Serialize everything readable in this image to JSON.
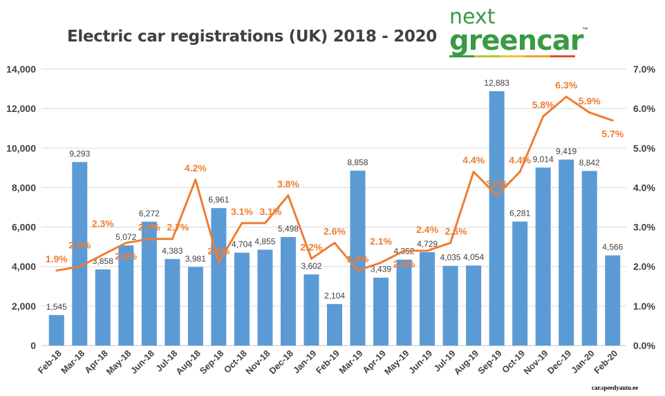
{
  "chart_data": {
    "type": "bar+line",
    "title": "Electric car registrations (UK) 2018 - 2020",
    "categories": [
      "Feb-18",
      "Mar-18",
      "Apr-18",
      "May-18",
      "Jun-18",
      "Jul-18",
      "Aug-18",
      "Sep-18",
      "Oct-18",
      "Nov-18",
      "Dec-18",
      "Jan-19",
      "Feb-19",
      "Mar-19",
      "Apr-19",
      "May-19",
      "Jun-19",
      "Jul-19",
      "Aug-19",
      "Sep-19",
      "Oct-19",
      "Nov-19",
      "Dec-19",
      "Jan-20",
      "Feb-20"
    ],
    "series": [
      {
        "type": "bar",
        "axis": "left",
        "color": "#5b9bd5",
        "values": [
          1545,
          9293,
          3858,
          5072,
          6272,
          4383,
          3981,
          6961,
          4704,
          4855,
          5498,
          3602,
          2104,
          8858,
          3439,
          4352,
          4729,
          4035,
          4054,
          12883,
          6281,
          9014,
          9419,
          8842,
          4566
        ]
      },
      {
        "type": "line",
        "axis": "right",
        "color": "#ed7d31",
        "values": [
          1.9,
          2.0,
          2.3,
          2.6,
          2.7,
          2.7,
          4.2,
          2.1,
          3.1,
          3.1,
          3.8,
          2.2,
          2.6,
          1.9,
          2.1,
          2.4,
          2.4,
          2.6,
          4.4,
          3.8,
          4.4,
          5.8,
          6.3,
          5.9,
          5.7
        ]
      }
    ],
    "y_left": {
      "range": [
        0,
        14000
      ],
      "ticks": [
        "0",
        "2,000",
        "4,000",
        "6,000",
        "8,000",
        "10,000",
        "12,000",
        "14,000"
      ]
    },
    "y_right": {
      "range": [
        0,
        7
      ],
      "ticks": [
        "0.0%",
        "1.0%",
        "2.0%",
        "3.0%",
        "4.0%",
        "5.0%",
        "6.0%",
        "7.0%"
      ]
    },
    "grid": true,
    "legend": "none"
  },
  "logo": {
    "line1": "next",
    "line2": "greencar",
    "tm": "™",
    "colors": [
      "#3a9a43",
      "#b5c832",
      "#f2c12e",
      "#f0a030",
      "#e04a3a"
    ]
  },
  "watermark": "car.speedyauto.ee"
}
